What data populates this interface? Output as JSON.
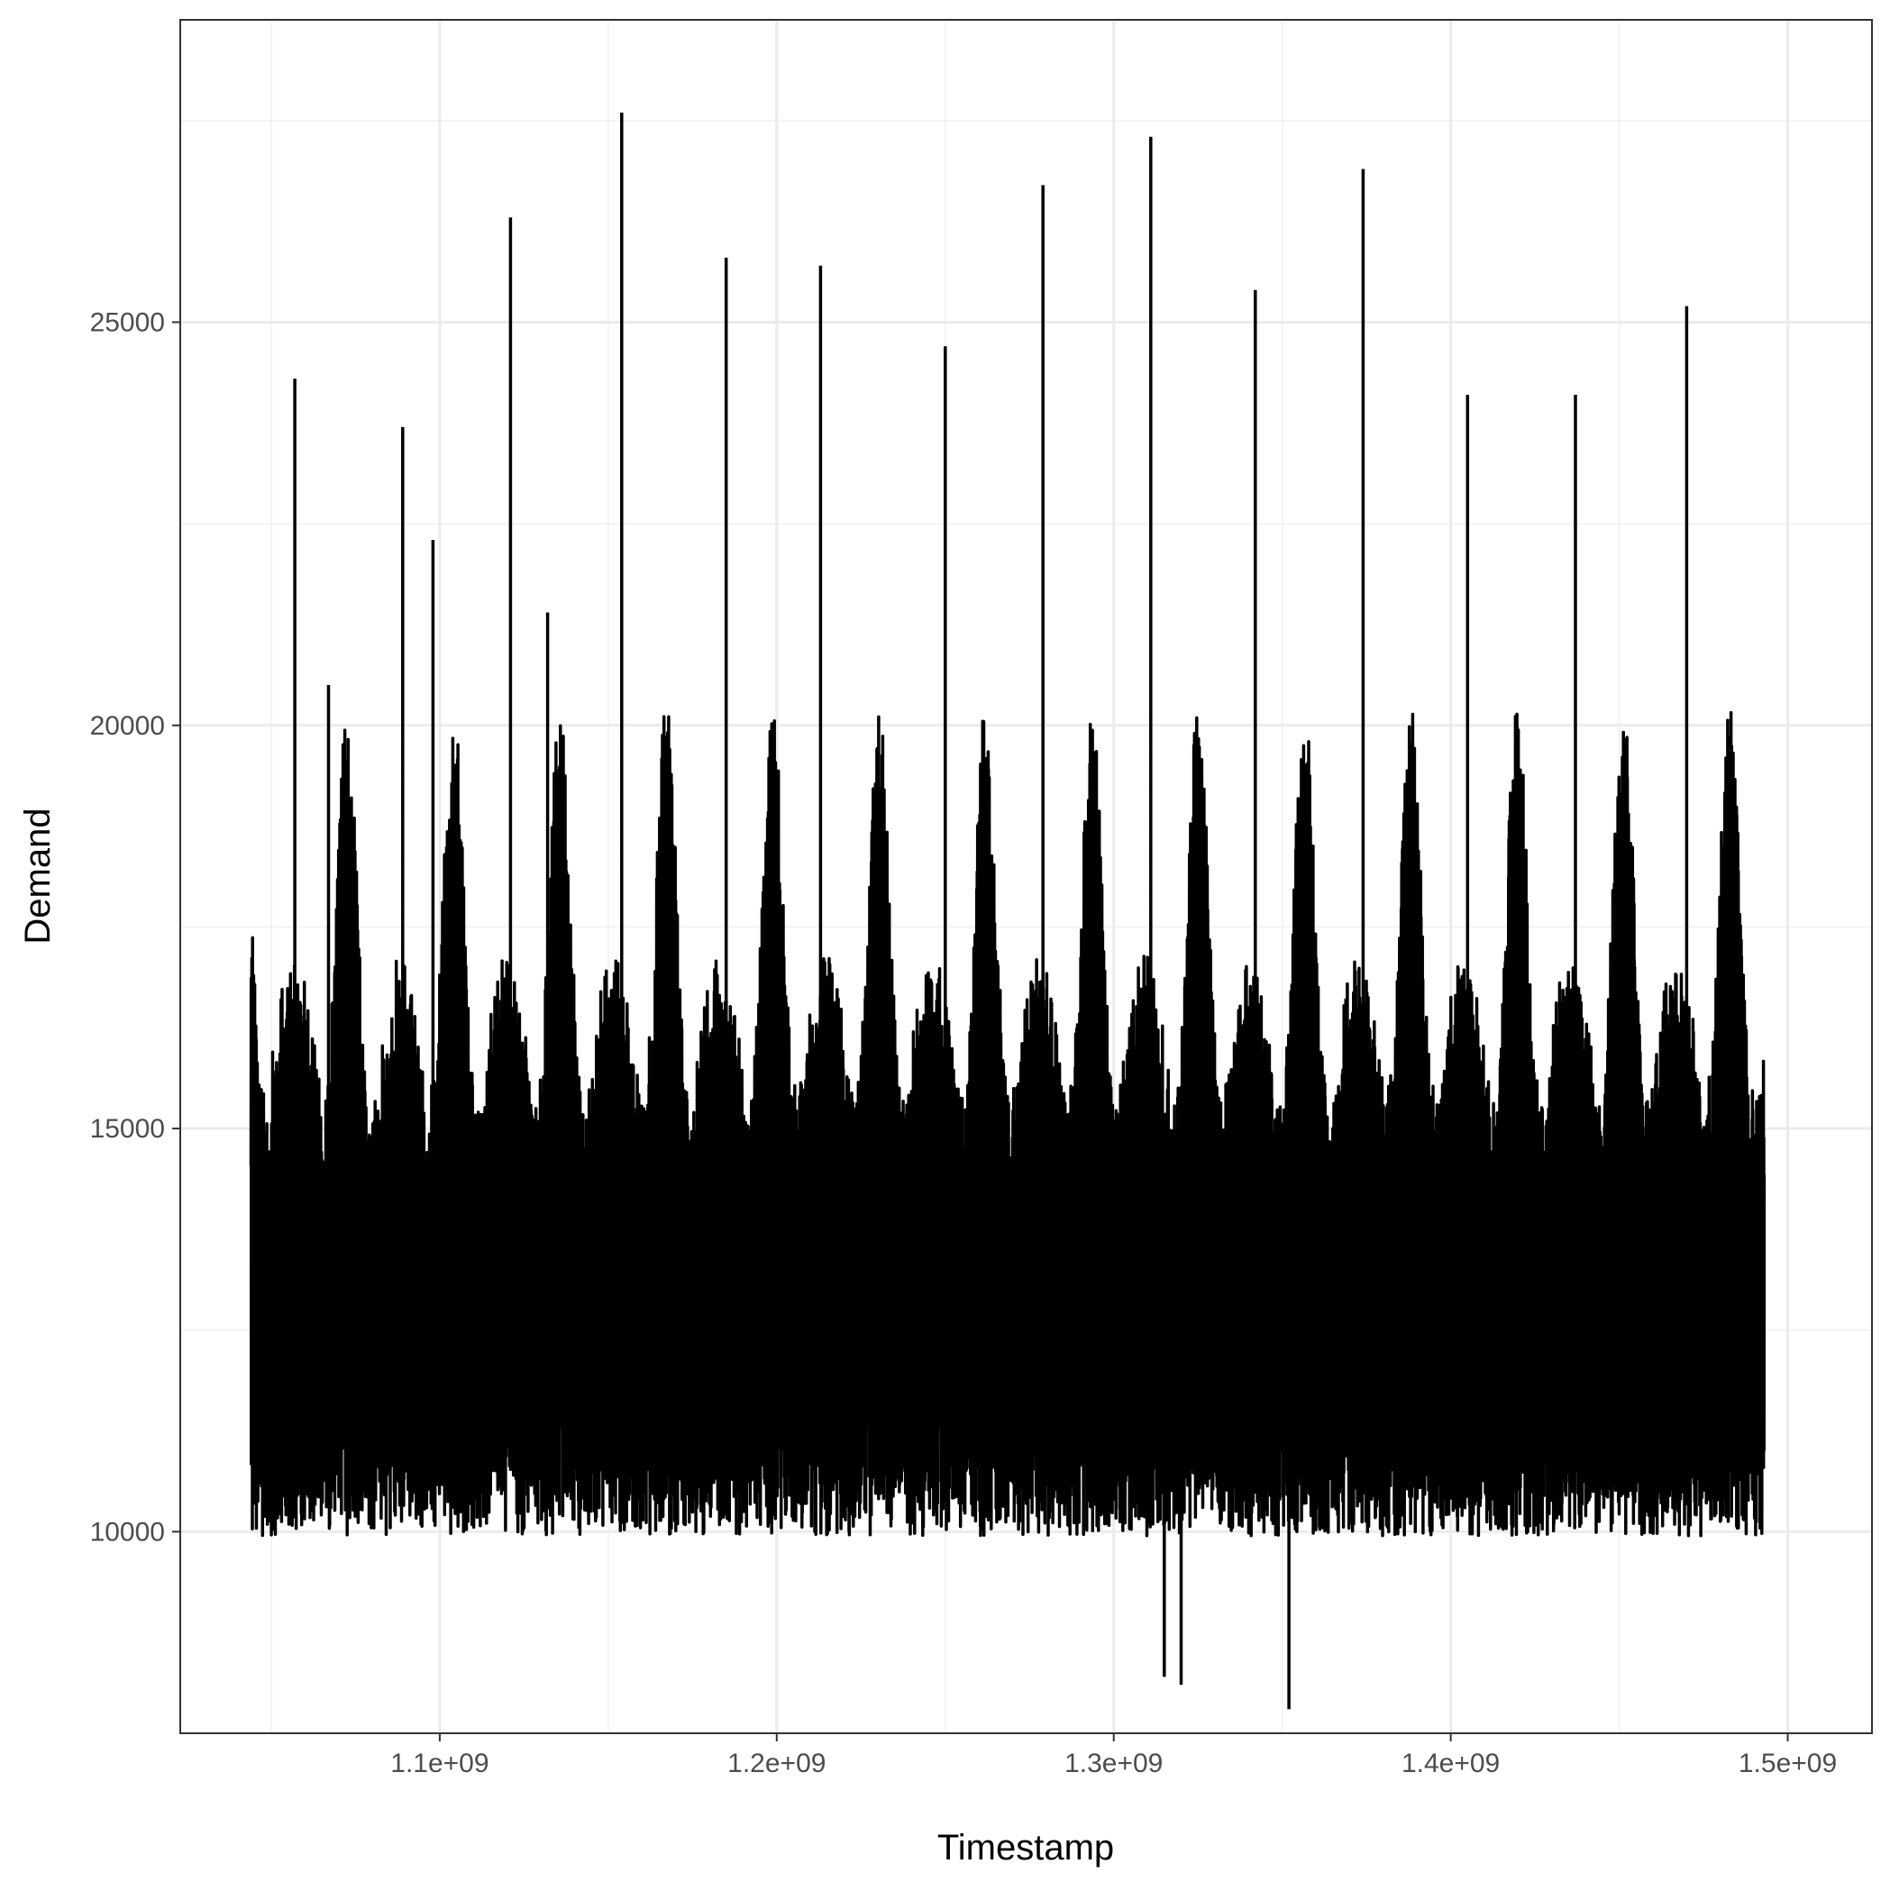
{
  "chart_data": {
    "type": "line",
    "title": "",
    "xlabel": "Timestamp",
    "ylabel": "Demand",
    "xlim": [
      1023000000,
      1525000000
    ],
    "ylim": [
      7500,
      28750
    ],
    "x_ticks": [
      1100000000,
      1200000000,
      1300000000,
      1400000000,
      1500000000
    ],
    "x_tick_labels": [
      "1.1e+09",
      "1.2e+09",
      "1.3e+09",
      "1.4e+09",
      "1.5e+09"
    ],
    "y_ticks": [
      10000,
      15000,
      20000,
      25000
    ],
    "y_tick_labels": [
      "10000",
      "15000",
      "20000",
      "25000"
    ],
    "x_minor_ticks": [
      1050000000,
      1150000000,
      1250000000,
      1350000000,
      1450000000
    ],
    "y_minor_ticks": [
      7500,
      12500,
      17500,
      22500,
      27500
    ],
    "grid": true,
    "legend": "none",
    "line_color": "#000000",
    "series": [
      {
        "x_start": 1044000000,
        "x_end": 1493000000,
        "approx_mean": 13500,
        "approx_min": 7800,
        "approx_max": 27600,
        "summer_peaks": [
          {
            "x": 1057000000,
            "y": 24300
          },
          {
            "x": 1067000000,
            "y": 20500
          },
          {
            "x": 1089000000,
            "y": 23700
          },
          {
            "x": 1098000000,
            "y": 22300
          },
          {
            "x": 1121000000,
            "y": 26300
          },
          {
            "x": 1132000000,
            "y": 21400
          },
          {
            "x": 1154000000,
            "y": 27600
          },
          {
            "x": 1185000000,
            "y": 25800
          },
          {
            "x": 1213000000,
            "y": 25700
          },
          {
            "x": 1250000000,
            "y": 24700
          },
          {
            "x": 1279000000,
            "y": 26700
          },
          {
            "x": 1311000000,
            "y": 27300
          },
          {
            "x": 1342000000,
            "y": 25400
          },
          {
            "x": 1374000000,
            "y": 26900
          },
          {
            "x": 1405000000,
            "y": 24100
          },
          {
            "x": 1437000000,
            "y": 24100
          },
          {
            "x": 1470000000,
            "y": 25200
          }
        ],
        "notable_lows": [
          {
            "x": 1315000000,
            "y": 8200
          },
          {
            "x": 1320000000,
            "y": 8100
          },
          {
            "x": 1352000000,
            "y": 7800
          }
        ]
      }
    ]
  }
}
